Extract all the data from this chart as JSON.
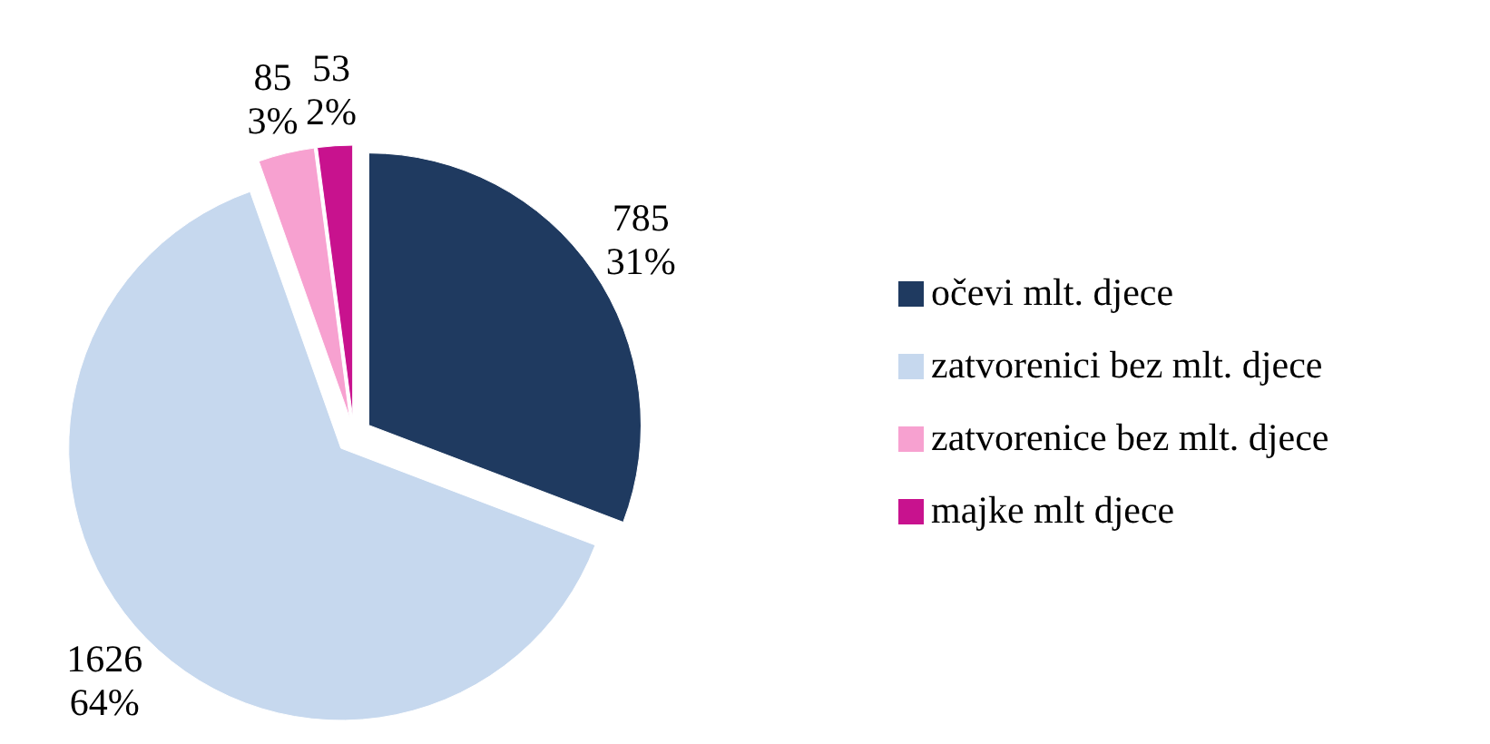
{
  "chart_data": {
    "type": "pie",
    "categories": [
      "očevi mlt. djece",
      "zatvorenici bez mlt. djece",
      "zatvorenice bez mlt. djece",
      "majke mlt djece"
    ],
    "values": [
      785,
      1626,
      85,
      53
    ],
    "colors": [
      "#1f3a60",
      "#c6d8ee",
      "#f7a1d0",
      "#c8128e"
    ],
    "value_labels": [
      "785\n31%",
      "1626\n64%",
      "85\n3%",
      "53\n2%"
    ],
    "legend": "right"
  }
}
